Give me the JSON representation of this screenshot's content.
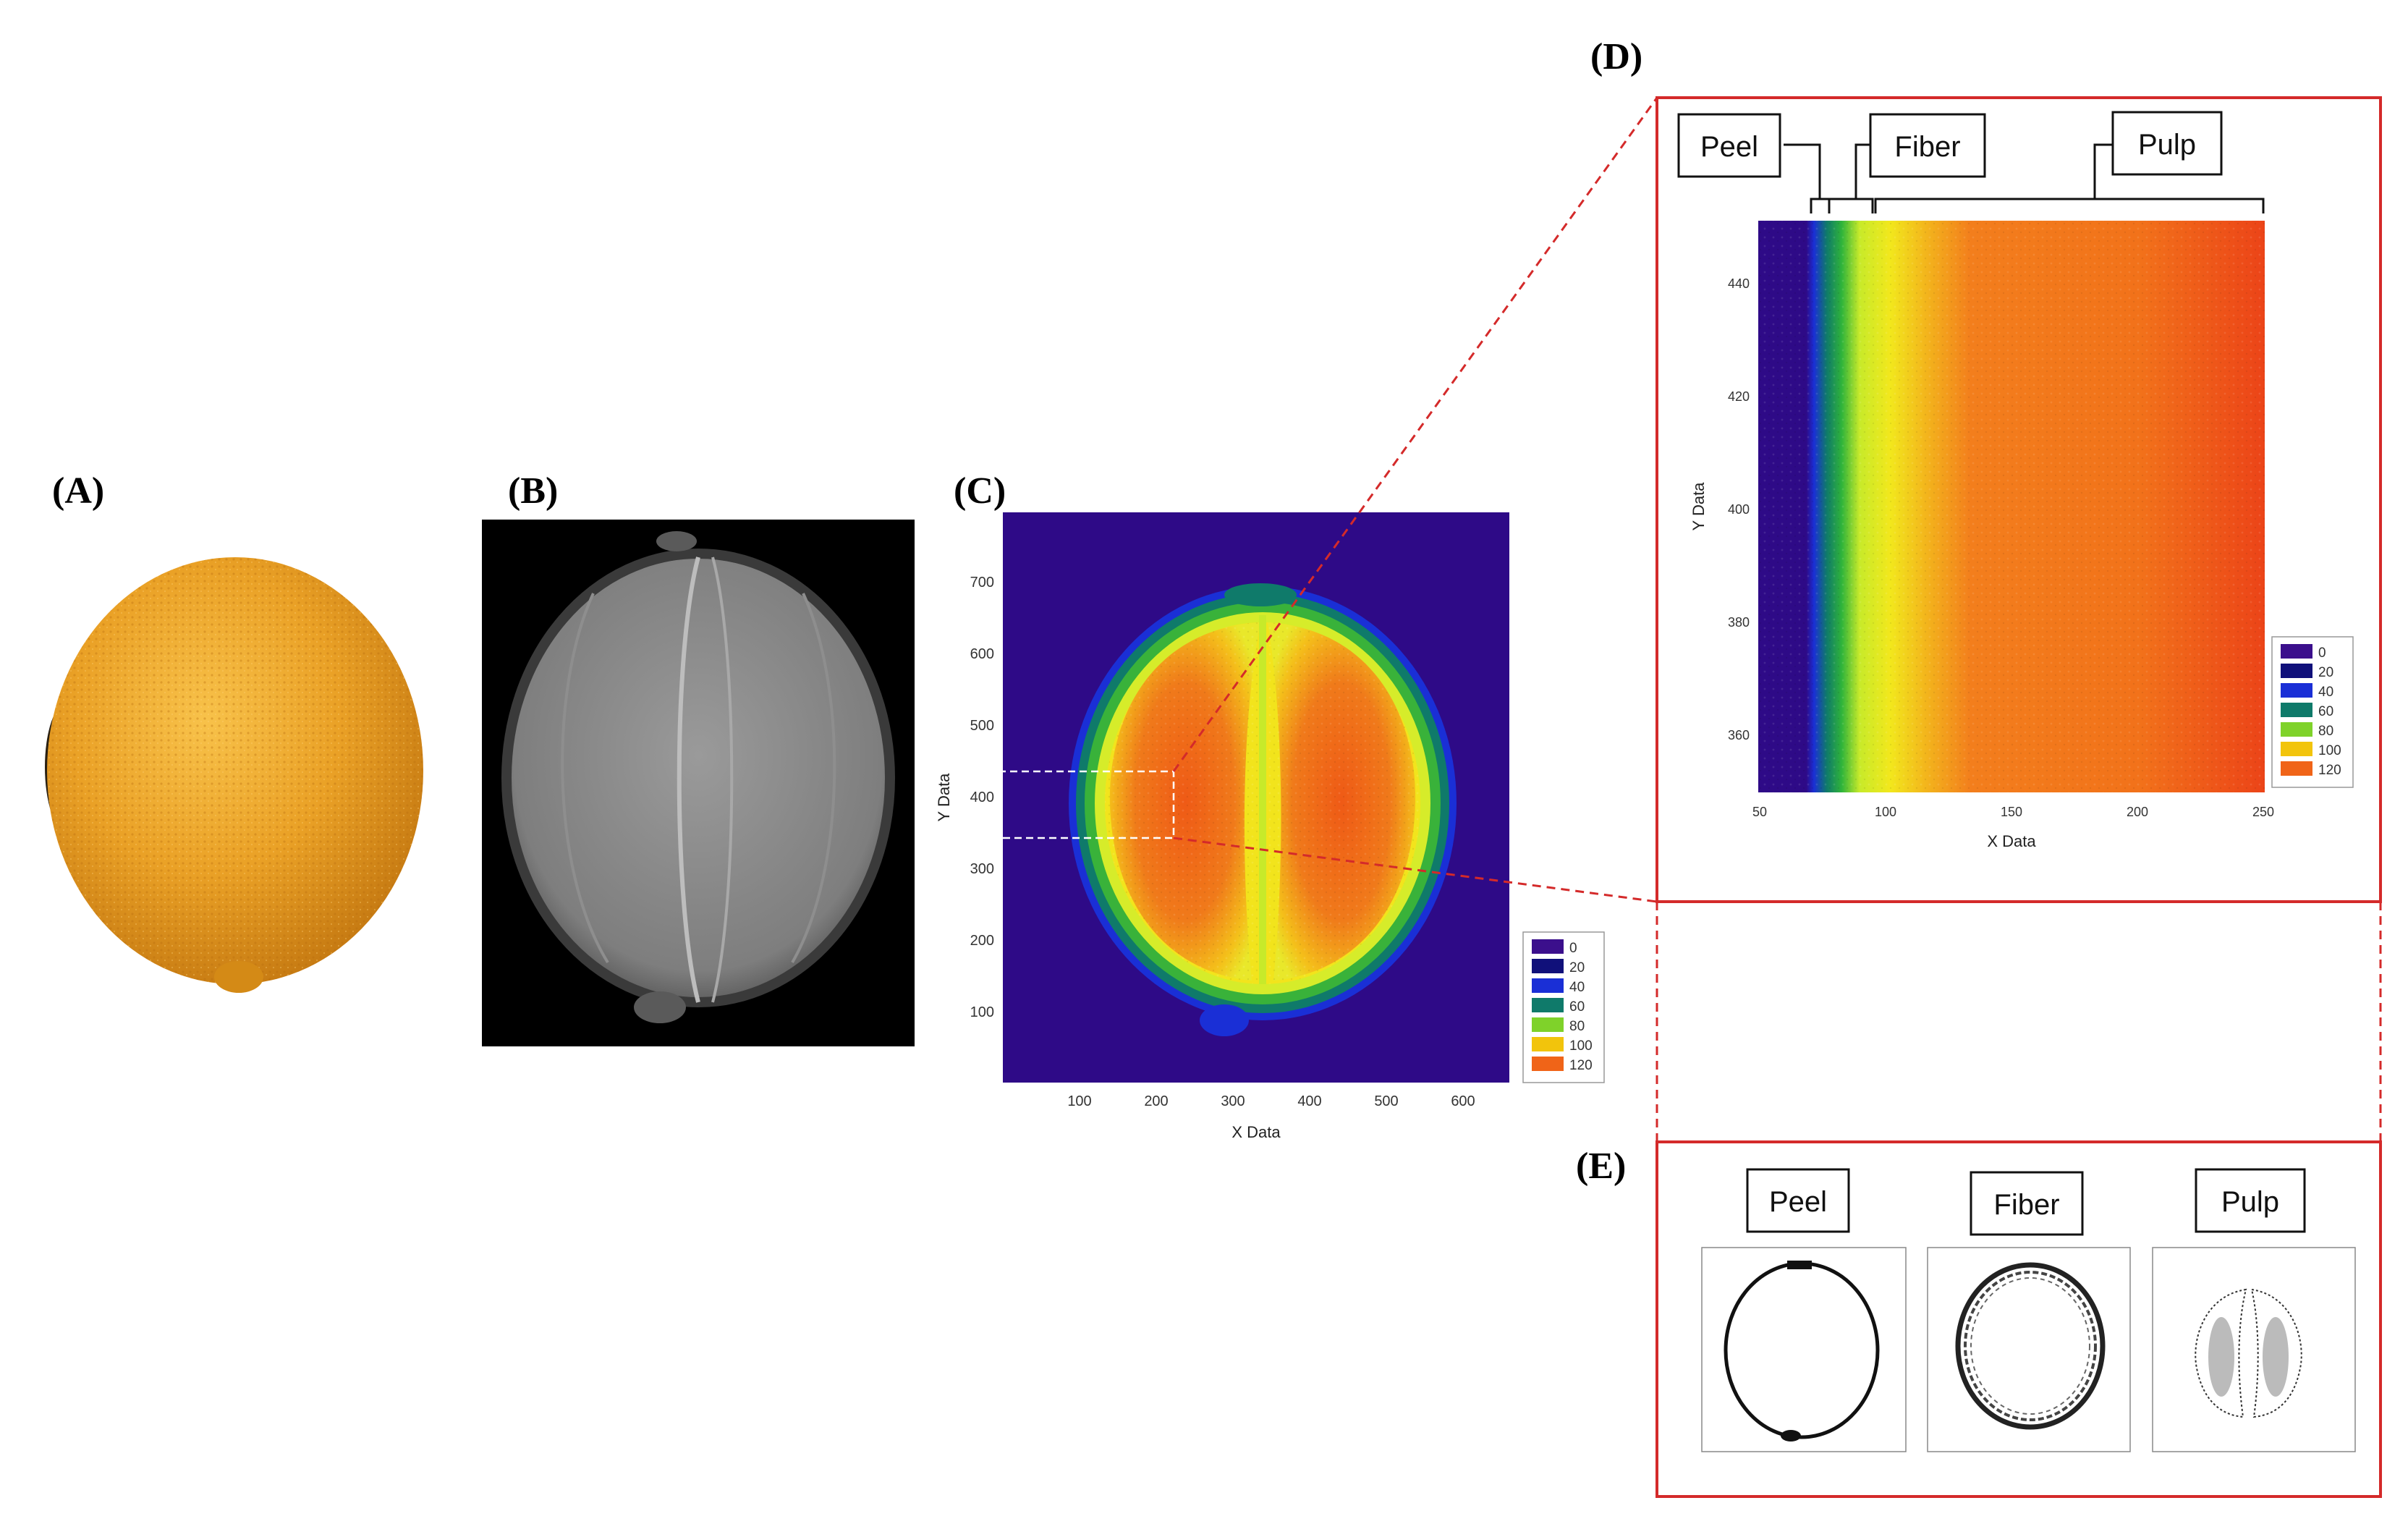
{
  "panels": {
    "a": {
      "label": "(A)"
    },
    "b": {
      "label": "(B)"
    },
    "c": {
      "label": "(C)"
    },
    "d": {
      "label": "(D)"
    },
    "e": {
      "label": "(E)"
    }
  },
  "panel_c": {
    "x_ticks": [
      "100",
      "200",
      "300",
      "400",
      "500",
      "600"
    ],
    "y_ticks": [
      "100",
      "200",
      "300",
      "400",
      "500",
      "600",
      "700"
    ],
    "xlabel": "X Data",
    "ylabel": "Y Data"
  },
  "panel_d": {
    "x_ticks": [
      "50",
      "100",
      "150",
      "200",
      "250"
    ],
    "y_ticks": [
      "360",
      "380",
      "400",
      "420",
      "440"
    ],
    "xlabel": "X Data",
    "ylabel": "Y Data",
    "region_labels": [
      "Peel",
      "Fiber",
      "Pulp"
    ]
  },
  "panel_e": {
    "labels": [
      "Peel",
      "Fiber",
      "Pulp"
    ]
  },
  "legend": {
    "entries": [
      "0",
      "20",
      "40",
      "60",
      "80",
      "100",
      "120"
    ],
    "colors": [
      "#3b0f8c",
      "#10107a",
      "#1a2fd6",
      "#0f7a6a",
      "#7fd22a",
      "#f2c40c",
      "#f06418"
    ]
  },
  "colors": {
    "zoom_frame": "#d42a2a",
    "background_map": "#2e0a87",
    "orange_fruit": "#e9a326"
  }
}
